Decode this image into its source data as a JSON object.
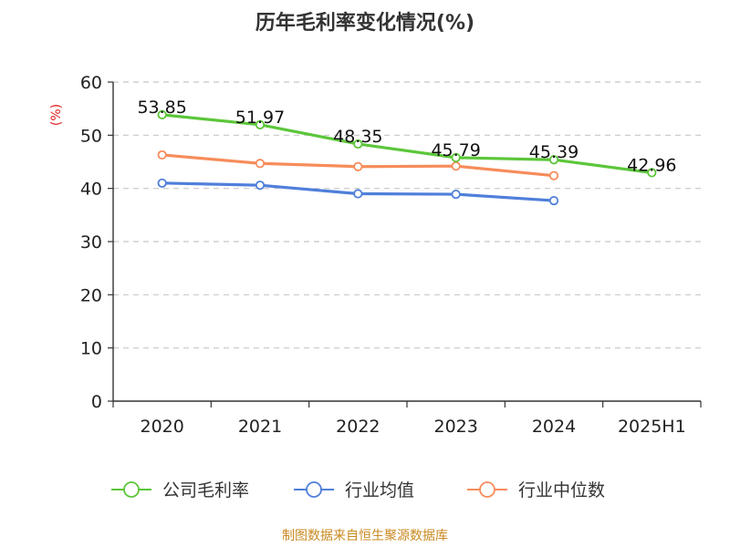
{
  "chart_data": {
    "type": "line",
    "title": "历年毛利率变化情况(%)",
    "ylabel": "(%)",
    "xlabel": "",
    "categories": [
      "2020",
      "2021",
      "2022",
      "2023",
      "2024",
      "2025H1"
    ],
    "ylim": [
      0,
      60
    ],
    "yticks": [
      0,
      10,
      20,
      30,
      40,
      50,
      60
    ],
    "grid": true,
    "legend_position": "bottom",
    "series": [
      {
        "name": "公司毛利率",
        "color": "#5cc63a",
        "values": [
          53.85,
          51.97,
          48.35,
          45.79,
          45.39,
          42.96
        ],
        "labels": [
          "53.85",
          "51.97",
          "48.35",
          "45.79",
          "45.39",
          "42.96"
        ]
      },
      {
        "name": "行业均值",
        "color": "#4f7fdb",
        "values": [
          41.0,
          40.6,
          39.0,
          38.9,
          37.7,
          null
        ]
      },
      {
        "name": "行业中位数",
        "color": "#f78c5a",
        "values": [
          46.3,
          44.7,
          44.1,
          44.2,
          42.4,
          null
        ]
      }
    ],
    "source": "制图数据来自恒生聚源数据库",
    "unit_color": "#e02020",
    "source_color": "#c98a20"
  }
}
